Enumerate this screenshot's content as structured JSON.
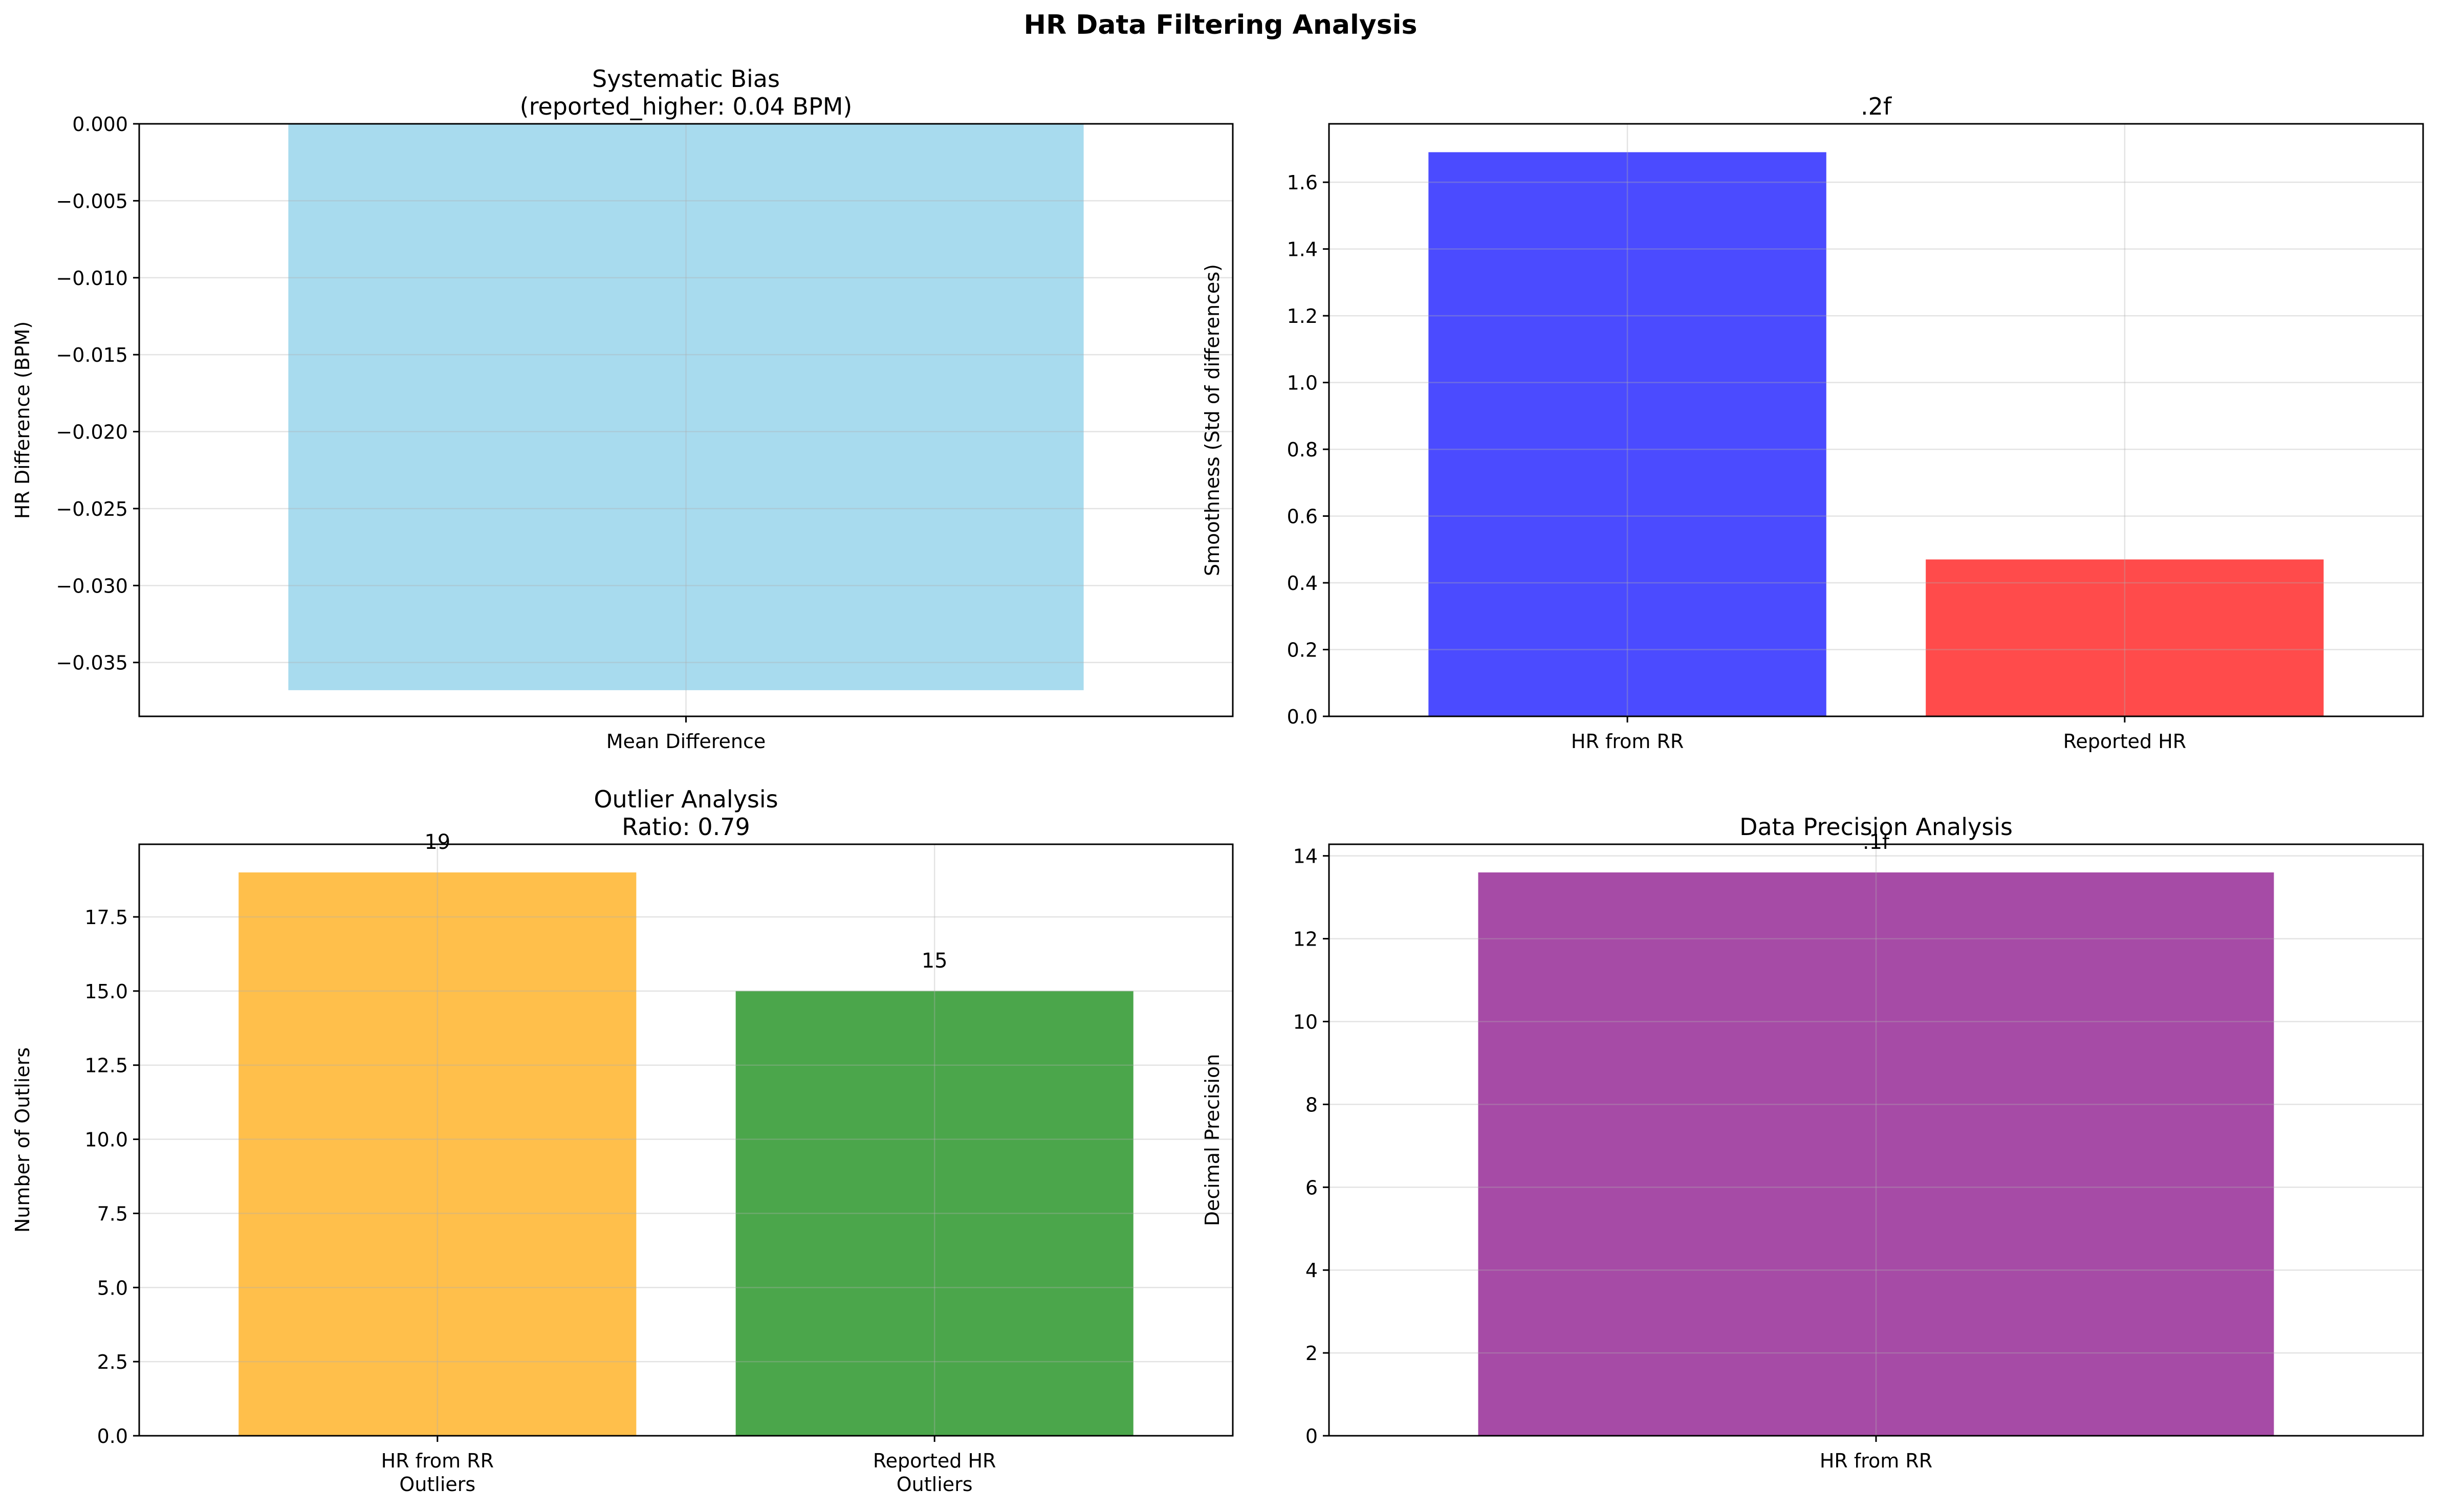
{
  "figure": {
    "title": "HR Data Filtering Analysis"
  },
  "chart_data": [
    {
      "type": "bar",
      "title_lines": [
        "Systematic Bias",
        "(reported_higher: 0.04 BPM)"
      ],
      "xlabel": "",
      "ylabel": "HR Difference (BPM)",
      "categories": [
        "Mean Difference"
      ],
      "values": [
        -0.0368
      ],
      "colors": [
        "#a8dbee"
      ],
      "ylim": [
        -0.0385,
        0.0
      ],
      "yticks": [
        0.0,
        -0.005,
        -0.01,
        -0.015,
        -0.02,
        -0.025,
        -0.03,
        -0.035
      ],
      "ytick_labels": [
        "0.000",
        "−0.005",
        "−0.010",
        "−0.015",
        "−0.020",
        "−0.025",
        "−0.030",
        "−0.035"
      ],
      "data_labels": [],
      "grid": true
    },
    {
      "type": "bar",
      "title_lines": [
        ".2f"
      ],
      "xlabel": "",
      "ylabel": "Smoothness (Std of differences)",
      "categories": [
        "HR from RR",
        "Reported HR"
      ],
      "values": [
        1.69,
        0.47
      ],
      "colors": [
        "#4b4bff",
        "#ff4b4b"
      ],
      "ylim": [
        0,
        1.775
      ],
      "yticks": [
        0.0,
        0.2,
        0.4,
        0.6,
        0.8,
        1.0,
        1.2,
        1.4,
        1.6
      ],
      "ytick_labels": [
        "0.0",
        "0.2",
        "0.4",
        "0.6",
        "0.8",
        "1.0",
        "1.2",
        "1.4",
        "1.6"
      ],
      "data_labels": [],
      "grid": true
    },
    {
      "type": "bar",
      "title_lines": [
        "Outlier Analysis",
        "Ratio: 0.79"
      ],
      "xlabel": "",
      "ylabel": "Number of Outliers",
      "categories": [
        [
          "HR from RR",
          "Outliers"
        ],
        [
          "Reported HR",
          "Outliers"
        ]
      ],
      "values": [
        19,
        15
      ],
      "colors": [
        "#ffbf4b",
        "#4ba64b"
      ],
      "ylim": [
        0,
        19.95
      ],
      "yticks": [
        0.0,
        2.5,
        5.0,
        7.5,
        10.0,
        12.5,
        15.0,
        17.5
      ],
      "ytick_labels": [
        "0.0",
        "2.5",
        "5.0",
        "7.5",
        "10.0",
        "12.5",
        "15.0",
        "17.5"
      ],
      "data_labels": [
        "19",
        "15"
      ],
      "grid": true
    },
    {
      "type": "bar",
      "title_lines": [
        "Data Precision Analysis"
      ],
      "xlabel": "",
      "ylabel": "Decimal Precision",
      "categories": [
        "HR from RR"
      ],
      "values": [
        13.6
      ],
      "colors": [
        "#a64ba6"
      ],
      "ylim": [
        0,
        14.28
      ],
      "yticks": [
        0,
        2,
        4,
        6,
        8,
        10,
        12,
        14
      ],
      "ytick_labels": [
        "0",
        "2",
        "4",
        "6",
        "8",
        "10",
        "12",
        "14"
      ],
      "data_labels": [
        ".1f"
      ],
      "grid": true
    }
  ]
}
